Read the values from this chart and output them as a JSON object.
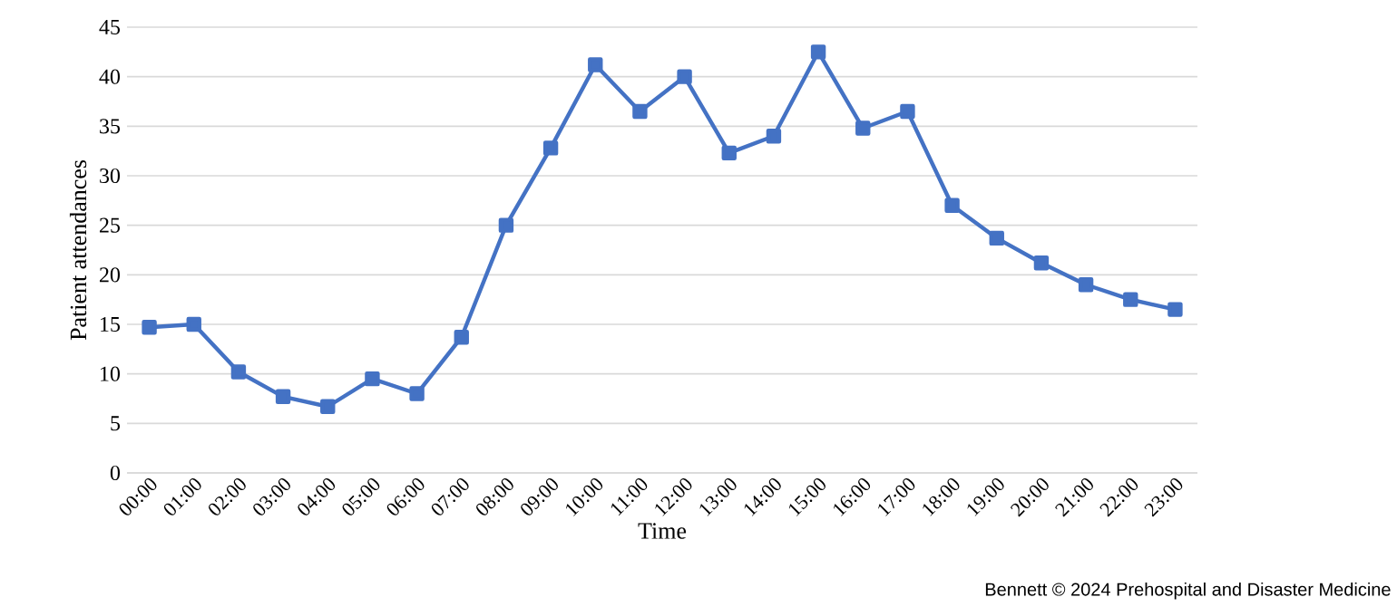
{
  "chart_data": {
    "type": "line",
    "xlabel": "Time",
    "ylabel": "Patient attendances",
    "categories": [
      "00:00",
      "01:00",
      "02:00",
      "03:00",
      "04:00",
      "05:00",
      "06:00",
      "07:00",
      "08:00",
      "09:00",
      "10:00",
      "11:00",
      "12:00",
      "13:00",
      "14:00",
      "15:00",
      "16:00",
      "17:00",
      "18:00",
      "19:00",
      "20:00",
      "21:00",
      "22:00",
      "23:00"
    ],
    "series": [
      {
        "color": "#4472c4",
        "values": [
          14.7,
          15,
          10.2,
          7.7,
          6.7,
          9.5,
          8,
          13.7,
          25,
          32.8,
          41.2,
          36.5,
          40,
          32.3,
          34,
          42.5,
          34.8,
          36.5,
          27,
          23.7,
          21.2,
          19,
          17.5,
          16.5
        ]
      }
    ],
    "ylim": [
      0,
      45
    ],
    "yticks": [
      0,
      5,
      10,
      15,
      20,
      25,
      30,
      35,
      40,
      45
    ],
    "grid": "y",
    "marker": "square",
    "line_style": "solid",
    "annotations": [
      "Bennett © 2024 Prehospital and Disaster Medicine"
    ]
  }
}
